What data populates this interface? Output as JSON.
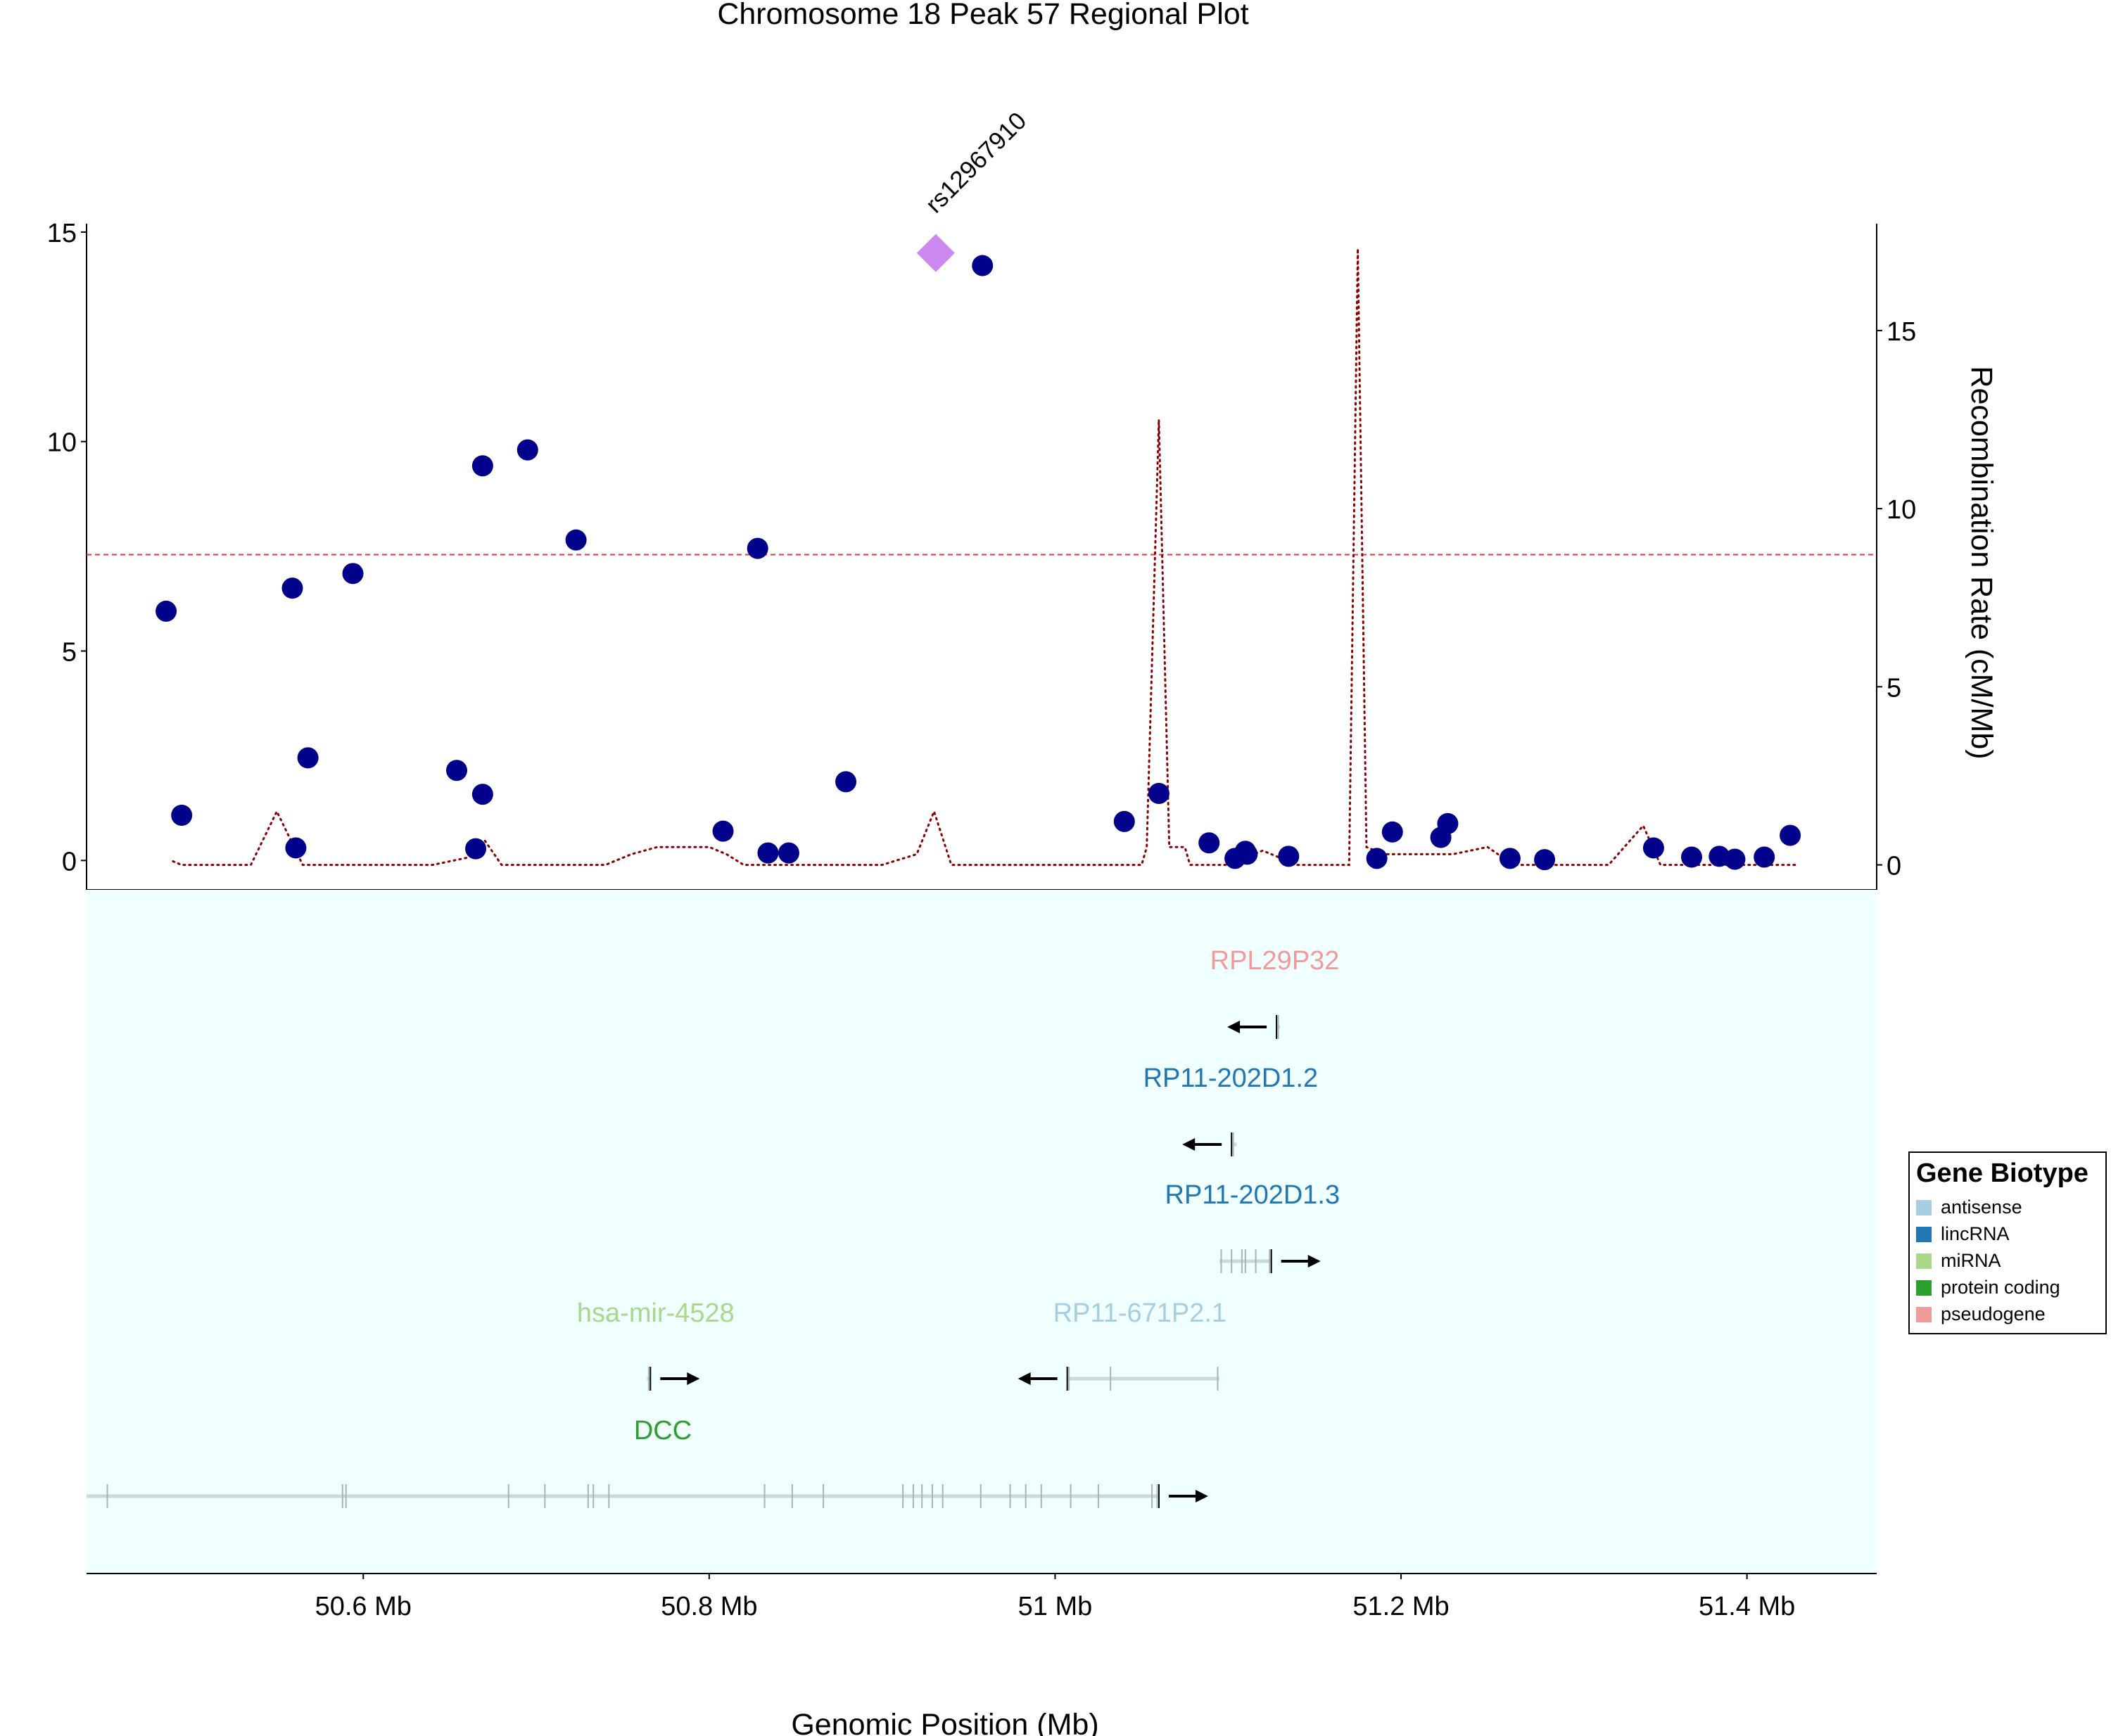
{
  "chart_data": {
    "type": "scatter",
    "title": "Chromosome 18 Peak 57 Regional Plot",
    "xlabel": "Genomic Position (Mb)",
    "y2label": "Recombination Rate (cM/Mb)",
    "ylabel": "",
    "xlim": [
      50.44,
      51.475
    ],
    "ylim": [
      -0.7,
      15.2
    ],
    "y2lim": [
      -0.7,
      18.0
    ],
    "x_ticks": [
      50.6,
      50.8,
      51.0,
      51.2,
      51.4
    ],
    "x_tick_labels": [
      "50.6 Mb",
      "50.8 Mb",
      "51 Mb",
      "51.2 Mb",
      "51.4 Mb"
    ],
    "y_ticks": [
      0,
      5,
      10,
      15
    ],
    "y_tick_labels": [
      "0",
      "5",
      "10",
      "15"
    ],
    "y2_ticks": [
      0,
      5,
      10,
      15
    ],
    "y2_tick_labels": [
      "0",
      "5",
      "10",
      "15"
    ],
    "significance_line": 7.3,
    "lead_snp": {
      "name": "rs12967910",
      "x": 50.931,
      "y": 14.5,
      "color": "#cc88ee"
    },
    "points_color": "#00008b",
    "points": [
      [
        50.486,
        5.95
      ],
      [
        50.495,
        1.08
      ],
      [
        50.559,
        6.5
      ],
      [
        50.561,
        0.3
      ],
      [
        50.568,
        2.45
      ],
      [
        50.594,
        6.85
      ],
      [
        50.654,
        2.15
      ],
      [
        50.665,
        0.28
      ],
      [
        50.669,
        9.42
      ],
      [
        50.669,
        1.58
      ],
      [
        50.695,
        9.8
      ],
      [
        50.723,
        7.65
      ],
      [
        50.808,
        0.7
      ],
      [
        50.828,
        7.45
      ],
      [
        50.834,
        0.18
      ],
      [
        50.846,
        0.18
      ],
      [
        50.879,
        1.88
      ],
      [
        50.958,
        14.2
      ],
      [
        51.04,
        0.93
      ],
      [
        51.06,
        1.6
      ],
      [
        51.089,
        0.42
      ],
      [
        51.104,
        0.05
      ],
      [
        51.11,
        0.22
      ],
      [
        51.111,
        0.15
      ],
      [
        51.135,
        0.1
      ],
      [
        51.186,
        0.05
      ],
      [
        51.195,
        0.68
      ],
      [
        51.223,
        0.55
      ],
      [
        51.227,
        0.88
      ],
      [
        51.263,
        0.05
      ],
      [
        51.283,
        0.02
      ],
      [
        51.346,
        0.3
      ],
      [
        51.368,
        0.08
      ],
      [
        51.384,
        0.1
      ],
      [
        51.393,
        0.03
      ],
      [
        51.41,
        0.08
      ],
      [
        51.425,
        0.6
      ]
    ],
    "recombination_color": "#8b0000",
    "recombination": [
      [
        50.49,
        0.1
      ],
      [
        50.495,
        0.0
      ],
      [
        50.535,
        0.0
      ],
      [
        50.55,
        1.5
      ],
      [
        50.565,
        0.0
      ],
      [
        50.64,
        0.0
      ],
      [
        50.66,
        0.2
      ],
      [
        50.67,
        0.7
      ],
      [
        50.68,
        0.0
      ],
      [
        50.74,
        0.0
      ],
      [
        50.755,
        0.3
      ],
      [
        50.77,
        0.5
      ],
      [
        50.8,
        0.5
      ],
      [
        50.81,
        0.3
      ],
      [
        50.82,
        0.0
      ],
      [
        50.9,
        0.0
      ],
      [
        50.92,
        0.3
      ],
      [
        50.93,
        1.5
      ],
      [
        50.94,
        0.0
      ],
      [
        51.05,
        0.0
      ],
      [
        51.053,
        0.5
      ],
      [
        51.06,
        12.5
      ],
      [
        51.066,
        0.5
      ],
      [
        51.075,
        0.5
      ],
      [
        51.078,
        0.0
      ],
      [
        51.1,
        0.0
      ],
      [
        51.12,
        0.4
      ],
      [
        51.14,
        0.0
      ],
      [
        51.17,
        0.0
      ],
      [
        51.175,
        17.3
      ],
      [
        51.18,
        0.5
      ],
      [
        51.19,
        0.3
      ],
      [
        51.23,
        0.3
      ],
      [
        51.25,
        0.5
      ],
      [
        51.265,
        0.0
      ],
      [
        51.32,
        0.0
      ],
      [
        51.34,
        1.1
      ],
      [
        51.35,
        0.0
      ],
      [
        51.43,
        0.0
      ]
    ],
    "genes": [
      {
        "name": "RPL29P32",
        "biotype": "pseudogene",
        "color": "#f19a9a",
        "start": 51.128,
        "end": 51.13,
        "strand": "-",
        "row": 0,
        "exons": [
          51.129
        ]
      },
      {
        "name": "RP11-202D1.2",
        "biotype": "lincRNA",
        "color": "#2177b4",
        "start": 51.102,
        "end": 51.105,
        "strand": "-",
        "row": 1,
        "exons": [
          51.103
        ]
      },
      {
        "name": "RP11-202D1.3",
        "biotype": "lincRNA",
        "color": "#2177b4",
        "start": 51.095,
        "end": 51.125,
        "strand": "+",
        "row": 2,
        "exons": [
          51.096,
          51.102,
          51.108,
          51.11,
          51.116,
          51.124
        ]
      },
      {
        "name": "hsa-mir-4528",
        "biotype": "miRNA",
        "color": "#a9d88a",
        "start": 50.764,
        "end": 50.766,
        "strand": "+",
        "row": 3,
        "exons": [
          50.765
        ]
      },
      {
        "name": "RP11-671P2.1",
        "biotype": "antisense",
        "color": "#a6cee3",
        "start": 51.007,
        "end": 51.095,
        "strand": "-",
        "row": 3,
        "exons": [
          51.008,
          51.032,
          51.094
        ]
      },
      {
        "name": "DCC",
        "biotype": "protein coding",
        "color": "#2ca02c",
        "start": 50.44,
        "end": 51.06,
        "strand": "+",
        "row": 4,
        "exons": [
          50.452,
          50.588,
          50.59,
          50.684,
          50.705,
          50.73,
          50.733,
          50.742,
          50.832,
          50.848,
          50.866,
          50.912,
          50.918,
          50.923,
          50.929,
          50.935,
          50.957,
          50.974,
          50.983,
          50.992,
          51.009,
          51.025,
          51.056,
          51.059
        ]
      }
    ],
    "legend": {
      "title": "Gene Biotype",
      "position": "right",
      "items": [
        {
          "label": "antisense",
          "color": "#a6cee3"
        },
        {
          "label": "lincRNA",
          "color": "#2177b4"
        },
        {
          "label": "miRNA",
          "color": "#a9d88a"
        },
        {
          "label": "protein coding",
          "color": "#2ca02c"
        },
        {
          "label": "pseudogene",
          "color": "#f19a9a"
        }
      ]
    }
  }
}
